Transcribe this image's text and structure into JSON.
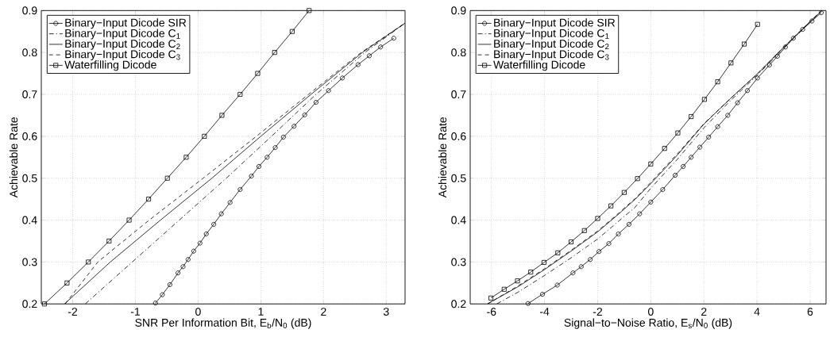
{
  "chart_data": [
    {
      "type": "line",
      "xlabel": "SNR Per Information Bit, E$_{b}$/N$_{0}$ (dB)",
      "ylabel": "Achievable Rate",
      "xlim": [
        -2.5,
        3.3
      ],
      "ylim": [
        0.2,
        0.9
      ],
      "xticks": [
        -2,
        -1,
        0,
        1,
        2,
        3
      ],
      "yticks": [
        0.2,
        0.3,
        0.4,
        0.5,
        0.6,
        0.7,
        0.8,
        0.9
      ],
      "grid": true,
      "legend": "top left",
      "series": [
        {
          "name": "Binary−Input Dicode SIR",
          "color": "#000000",
          "marker": "circle",
          "line_style": "solid",
          "x": [
            -0.68,
            -0.57,
            -0.45,
            -0.32,
            -0.24,
            -0.16,
            -0.07,
            0.03,
            0.13,
            0.25,
            0.37,
            0.51,
            0.67,
            0.85,
            0.97,
            1.1,
            1.23,
            1.36,
            1.53,
            1.7,
            1.88,
            2.08,
            2.3,
            2.55,
            2.73,
            2.91,
            3.12
          ],
          "values": [
            0.202,
            0.222,
            0.246,
            0.274,
            0.289,
            0.306,
            0.326,
            0.345,
            0.367,
            0.39,
            0.415,
            0.442,
            0.473,
            0.505,
            0.528,
            0.55,
            0.573,
            0.598,
            0.624,
            0.651,
            0.681,
            0.709,
            0.739,
            0.771,
            0.792,
            0.813,
            0.834
          ]
        },
        {
          "name": "Binary−Input Dicode C$_{1}$",
          "color": "#000000",
          "marker": "none",
          "line_style": "dashdot",
          "x": [
            -1.8,
            -1.05,
            -0.3,
            0.45,
            1.17,
            1.88,
            2.66,
            3.3
          ],
          "values": [
            0.2,
            0.3,
            0.4,
            0.5,
            0.6,
            0.7,
            0.8,
            0.87
          ]
        },
        {
          "name": "Binary−Input Dicode C$_{2}$",
          "color": "#000000",
          "marker": "none",
          "line_style": "solid",
          "x": [
            -2.13,
            -1.4,
            -0.6,
            0.22,
            1.0,
            1.8,
            2.62,
            3.3
          ],
          "values": [
            0.2,
            0.3,
            0.4,
            0.5,
            0.6,
            0.7,
            0.8,
            0.87
          ]
        },
        {
          "name": "Binary−Input Dicode C$_{3}$",
          "color": "#000000",
          "marker": "none",
          "line_style": "dashed",
          "x": [
            -2.12,
            -1.6,
            -0.78,
            0.08,
            0.93,
            1.76,
            2.6,
            3.3
          ],
          "values": [
            0.2,
            0.3,
            0.4,
            0.5,
            0.6,
            0.7,
            0.8,
            0.87
          ]
        },
        {
          "name": "Waterfilling Dicode",
          "color": "#000000",
          "marker": "square",
          "line_style": "solid",
          "x": [
            -2.45,
            -2.09,
            -1.75,
            -1.42,
            -1.1,
            -0.79,
            -0.49,
            -0.19,
            0.1,
            0.38,
            0.67,
            0.95,
            1.22,
            1.5,
            1.77
          ],
          "values": [
            0.2,
            0.25,
            0.3,
            0.35,
            0.4,
            0.45,
            0.5,
            0.55,
            0.6,
            0.65,
            0.7,
            0.75,
            0.8,
            0.85,
            0.9
          ]
        }
      ]
    },
    {
      "type": "line",
      "xlabel": "Signal−to−Noise Ratio, E$_{s}$/N$_{0}$ (dB)",
      "ylabel": "Achievable Rate",
      "xlim": [
        -6.8,
        6.6
      ],
      "ylim": [
        0.2,
        0.9
      ],
      "xticks": [
        -6,
        -4,
        -2,
        0,
        2,
        4,
        6
      ],
      "yticks": [
        0.2,
        0.3,
        0.4,
        0.5,
        0.6,
        0.7,
        0.8,
        0.9
      ],
      "grid": true,
      "legend": "top left",
      "series": [
        {
          "name": "Binary−Input Dicode SIR",
          "color": "#000000",
          "marker": "circle",
          "line_style": "solid",
          "x": [
            -4.62,
            -4.08,
            -3.52,
            -2.93,
            -2.62,
            -2.28,
            -1.95,
            -1.58,
            -1.22,
            -0.82,
            -0.42,
            0,
            0.45,
            0.92,
            1.22,
            1.52,
            1.85,
            2.18,
            2.52,
            2.9,
            3.27,
            3.64,
            4.02,
            4.47,
            4.77,
            5.07,
            5.37,
            5.72,
            6.07,
            6.42
          ],
          "values": [
            0.201,
            0.223,
            0.245,
            0.274,
            0.289,
            0.306,
            0.325,
            0.344,
            0.367,
            0.39,
            0.415,
            0.443,
            0.473,
            0.507,
            0.528,
            0.55,
            0.574,
            0.598,
            0.623,
            0.65,
            0.68,
            0.709,
            0.739,
            0.77,
            0.791,
            0.813,
            0.834,
            0.855,
            0.875,
            0.895
          ]
        },
        {
          "name": "Binary−Input Dicode C$_{1}$",
          "color": "#000000",
          "marker": "none",
          "line_style": "dashdot",
          "x": [
            -5.8,
            -5,
            -4,
            -3,
            -2,
            -1.2,
            -0.6,
            0,
            1,
            2,
            3,
            4,
            5,
            6,
            6.45
          ],
          "values": [
            0.2,
            0.228,
            0.268,
            0.31,
            0.355,
            0.398,
            0.43,
            0.476,
            0.545,
            0.62,
            0.685,
            0.745,
            0.81,
            0.873,
            0.9
          ]
        },
        {
          "name": "Binary−Input Dicode C$_{2}$",
          "color": "#000000",
          "marker": "none",
          "line_style": "solid",
          "x": [
            -6.15,
            -5,
            -4,
            -3,
            -2,
            -1.2,
            -0.6,
            0,
            1,
            2,
            3,
            4,
            5,
            6,
            6.45
          ],
          "values": [
            0.2,
            0.241,
            0.282,
            0.326,
            0.372,
            0.415,
            0.449,
            0.487,
            0.555,
            0.629,
            0.69,
            0.748,
            0.812,
            0.874,
            0.9
          ]
        },
        {
          "name": "Binary−Input Dicode C$_{3}$",
          "color": "#000000",
          "marker": "none",
          "line_style": "dashed",
          "x": [
            -6.15,
            -5,
            -4,
            -3,
            -2,
            -1.2,
            -0.6,
            0,
            1,
            2,
            3,
            4,
            5,
            6,
            6.45
          ],
          "values": [
            0.2,
            0.243,
            0.284,
            0.328,
            0.374,
            0.417,
            0.451,
            0.49,
            0.558,
            0.63,
            0.69,
            0.748,
            0.812,
            0.874,
            0.9
          ]
        },
        {
          "name": "Waterfilling Dicode",
          "color": "#000000",
          "marker": "square",
          "line_style": "solid",
          "x": [
            -6.02,
            -5.52,
            -5.02,
            -4.52,
            -4.02,
            -3.5,
            -3.0,
            -2.5,
            -2.0,
            -1.5,
            -1.0,
            -0.5,
            0,
            0.52,
            1.02,
            1.52,
            2.02,
            2.52,
            3.02,
            3.52,
            4.02
          ],
          "values": [
            0.214,
            0.235,
            0.255,
            0.276,
            0.299,
            0.322,
            0.348,
            0.375,
            0.404,
            0.434,
            0.466,
            0.499,
            0.534,
            0.571,
            0.608,
            0.647,
            0.688,
            0.73,
            0.775,
            0.82,
            0.867
          ]
        }
      ]
    }
  ]
}
